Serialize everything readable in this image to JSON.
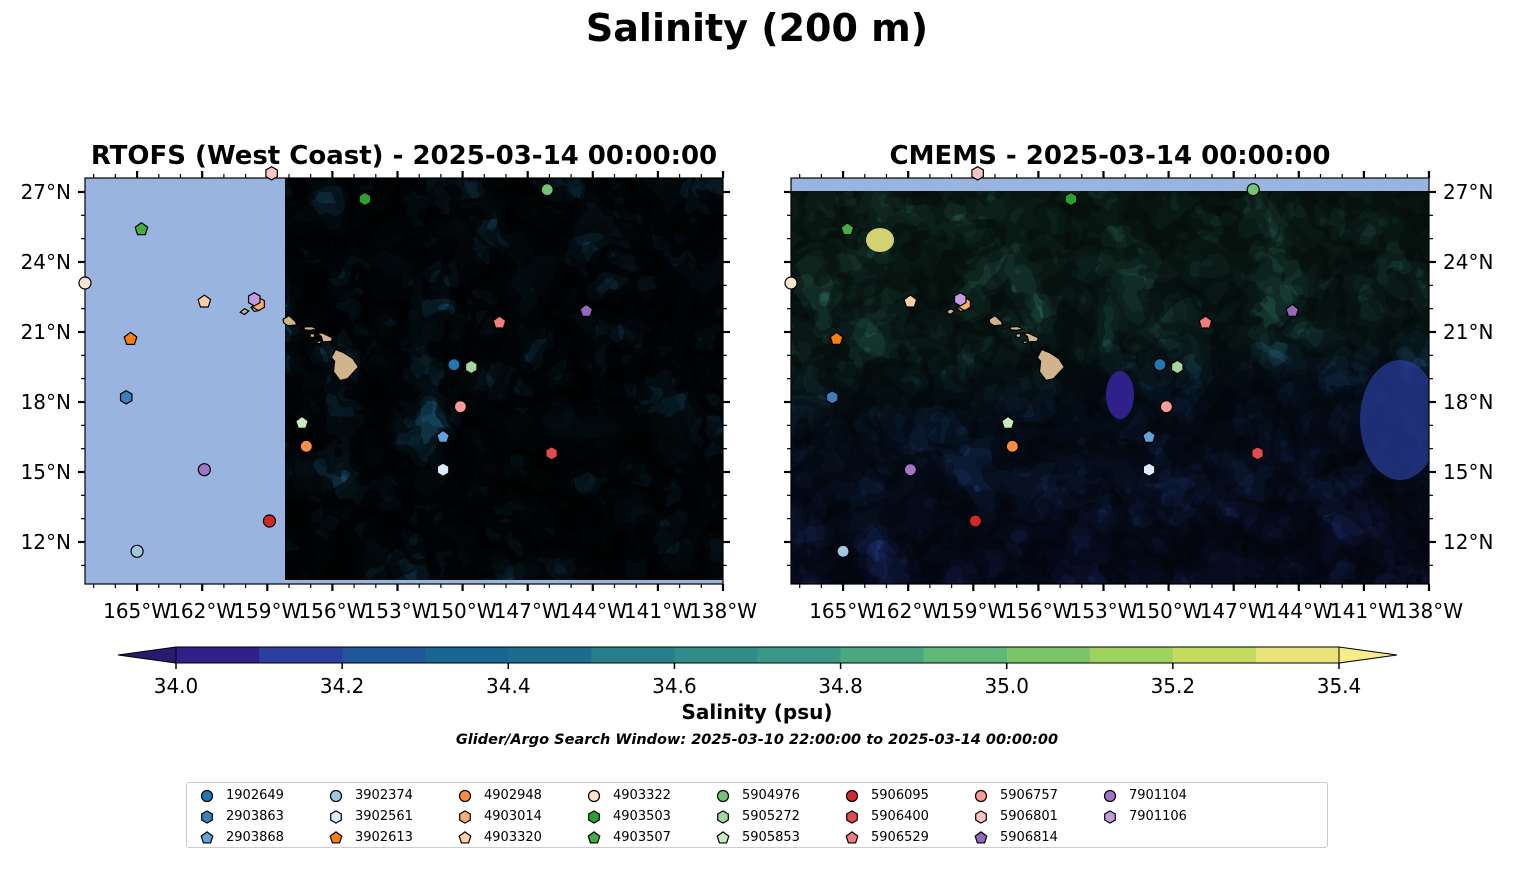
{
  "figure": {
    "title": "Salinity (200 m)",
    "search_window": "Glider/Argo Search Window: 2025-03-10 22:00:00 to 2025-03-14 00:00:00"
  },
  "panels": [
    {
      "title": "RTOFS (West Coast) - 2025-03-14 00:00:00",
      "model": "RTOFS",
      "data_west_limit_lon": -157.2,
      "lat_tick_side": "left"
    },
    {
      "title": "CMEMS - 2025-03-14 00:00:00",
      "model": "CMEMS",
      "data_north_limit_lat": 27.0,
      "lat_tick_side": "right"
    }
  ],
  "map": {
    "lon_range": [
      -167.4,
      -138.0
    ],
    "lat_range": [
      10.2,
      27.6
    ],
    "lon_ticks": [
      -165,
      -162,
      -159,
      -156,
      -153,
      -150,
      -147,
      -144,
      -141,
      -138
    ],
    "lon_tick_labels": [
      "165°W",
      "162°W",
      "159°W",
      "156°W",
      "153°W",
      "150°W",
      "147°W",
      "144°W",
      "141°W",
      "138°W"
    ],
    "lat_ticks": [
      12,
      15,
      18,
      21,
      24,
      27
    ],
    "lat_tick_labels": [
      "12°N",
      "15°N",
      "18°N",
      "21°N",
      "24°N",
      "27°N"
    ],
    "land_color": "#d2b48c",
    "nodata_color": "#9ab4e0"
  },
  "colorbar": {
    "label": "Salinity (psu)",
    "min": 34.0,
    "max": 35.4,
    "step": 0.1,
    "extend": "both",
    "ticks": [
      34.0,
      34.2,
      34.4,
      34.6,
      34.8,
      35.0,
      35.2,
      35.4
    ],
    "tick_labels": [
      "34.0",
      "34.2",
      "34.4",
      "34.6",
      "34.8",
      "35.0",
      "35.2",
      "35.4"
    ],
    "colors": [
      "#2a1a6b",
      "#30208a",
      "#2a3fa0",
      "#1f5599",
      "#176691",
      "#1a6e8c",
      "#267f8a",
      "#2f8c89",
      "#3a9986",
      "#4aa881",
      "#5eb87a",
      "#7ac46a",
      "#9fd25c",
      "#c3dc5e",
      "#e8e47a",
      "#f8ec8a"
    ]
  },
  "chart_data": {
    "type": "map",
    "title": "Salinity (200 m)",
    "variable": "Salinity (psu)",
    "legend_placement": "bottom",
    "legend_columns": 9,
    "platforms": [
      {
        "id": "1902649",
        "lon": -150.4,
        "lat": 19.6,
        "marker": "circle",
        "color": "#1f77b4"
      },
      {
        "id": "2903863",
        "lon": -165.5,
        "lat": 18.2,
        "marker": "hexagon",
        "color": "#3b7fc0"
      },
      {
        "id": "2903868",
        "lon": -150.9,
        "lat": 16.5,
        "marker": "pentagon",
        "color": "#5fa2dd"
      },
      {
        "id": "3902374",
        "lon": -165.0,
        "lat": 11.6,
        "marker": "circle",
        "color": "#9ecae1"
      },
      {
        "id": "3902561",
        "lon": -150.9,
        "lat": 15.1,
        "marker": "hexagon",
        "color": "#dbeafc"
      },
      {
        "id": "3902613",
        "lon": -165.3,
        "lat": 20.7,
        "marker": "pentagon",
        "color": "#ff7f0e"
      },
      {
        "id": "4902948",
        "lon": -157.2,
        "lat": 16.1,
        "marker": "circle",
        "color": "#fd8d3c"
      },
      {
        "id": "4903014",
        "lon": -159.4,
        "lat": 22.2,
        "marker": "hexagon",
        "color": "#fdae6b"
      },
      {
        "id": "4903320",
        "lon": -161.9,
        "lat": 22.3,
        "marker": "pentagon",
        "color": "#fdd0a2"
      },
      {
        "id": "4903322",
        "lon": -167.4,
        "lat": 23.1,
        "marker": "circle",
        "color": "#fde5cc"
      },
      {
        "id": "4903503",
        "lon": -154.5,
        "lat": 26.7,
        "marker": "hexagon",
        "color": "#2ca02c"
      },
      {
        "id": "4903507",
        "lon": -164.8,
        "lat": 25.4,
        "marker": "pentagon",
        "color": "#41ae41"
      },
      {
        "id": "5904976",
        "lon": -146.1,
        "lat": 27.1,
        "marker": "circle",
        "color": "#74c476"
      },
      {
        "id": "5905272",
        "lon": -149.6,
        "lat": 19.5,
        "marker": "hexagon",
        "color": "#a1d99b"
      },
      {
        "id": "5905853",
        "lon": -157.4,
        "lat": 17.1,
        "marker": "pentagon",
        "color": "#c7e9c0"
      },
      {
        "id": "5906095",
        "lon": -158.9,
        "lat": 12.9,
        "marker": "circle",
        "color": "#d62728"
      },
      {
        "id": "5906400",
        "lon": -145.9,
        "lat": 15.8,
        "marker": "hexagon",
        "color": "#e34a4a"
      },
      {
        "id": "5906529",
        "lon": -148.3,
        "lat": 21.4,
        "marker": "pentagon",
        "color": "#f47c7c"
      },
      {
        "id": "5906757",
        "lon": -150.1,
        "lat": 17.8,
        "marker": "circle",
        "color": "#fb9a99"
      },
      {
        "id": "5906801",
        "lon": -158.8,
        "lat": 27.8,
        "marker": "hexagon",
        "color": "#fcc5c0"
      },
      {
        "id": "5906814",
        "lon": -144.3,
        "lat": 21.9,
        "marker": "pentagon",
        "color": "#9467bd"
      },
      {
        "id": "7901104",
        "lon": -161.9,
        "lat": 15.1,
        "marker": "circle",
        "color": "#a173c9"
      },
      {
        "id": "7901106",
        "lon": -159.6,
        "lat": 22.4,
        "marker": "hexagon",
        "color": "#c39be0"
      }
    ]
  }
}
